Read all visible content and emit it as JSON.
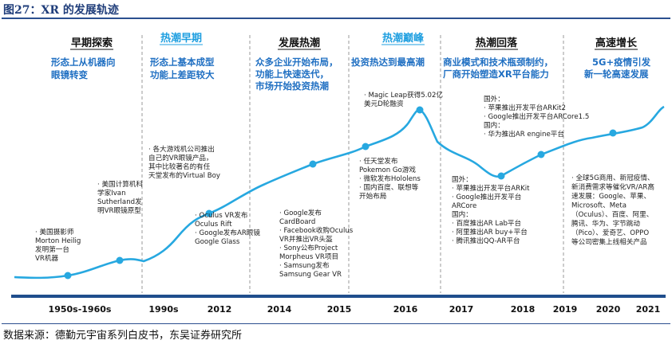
{
  "figure_title": "图27：XR 的发展轨迹",
  "source": "数据来源：德勤元宇宙系列白皮书，东吴证券研究所",
  "phases": [
    {
      "name": "早期探索",
      "color": "#111111",
      "desc": [
        "形态上从机器向",
        "眼镜转变"
      ]
    },
    {
      "name": "热潮早期",
      "color": "#1f9fe0",
      "desc": [
        "形态上基本成型",
        "功能上差距较大"
      ]
    },
    {
      "name": "发展热潮",
      "color": "#111111",
      "desc": [
        "众多企业开始布局，",
        "功能上快速迭代，",
        "市场开始投资热潮"
      ]
    },
    {
      "name": "热潮巅峰",
      "color": "#1f9fe0",
      "desc": [
        "投资热达到最高潮"
      ]
    },
    {
      "name": "热潮回落",
      "color": "#111111",
      "desc": [
        "商业模式和技术瓶颈制约，",
        "厂商开始塑造XR平台能力"
      ]
    },
    {
      "name": "高速增长",
      "color": "#111111",
      "desc": [
        "5G+疫情引发",
        "新一轮高速发展"
      ]
    }
  ],
  "timeline": [
    "1950s-1960s",
    "1990s",
    "2012",
    "2014",
    "2015",
    "2016",
    "2017",
    "2018",
    "2019",
    "2020",
    "2021"
  ],
  "events": [
    {
      "lines": [
        "· 美国摄影师",
        "Morton Heilig",
        "发明第一台",
        "VR机器"
      ]
    },
    {
      "lines": [
        "· 美国计算机科",
        "学家Ivan",
        "Sutherland发",
        "明VR眼镜原型"
      ]
    },
    {
      "lines": [
        "· 各大游戏机公司推出",
        "自己的VR眼镜产品，",
        "其中比较著名的有任",
        "天堂发布的Virtual Boy"
      ]
    },
    {
      "lines": [
        "· Oculus VR发布",
        "Oculus Rift",
        "· Google发布AR眼镜",
        "Google Glass"
      ]
    },
    {
      "lines": [
        "· Google发布",
        "CardBoard",
        "· Facebook收购Oculus",
        "VR并推出VR头盔",
        "· Sony公布Project",
        "Morpheus VR项目",
        "· Samsung发布",
        "Samsung Gear VR"
      ]
    },
    {
      "lines": [
        "· Magic Leap获得5.02亿",
        "美元D轮融资"
      ]
    },
    {
      "lines": [
        "· 任天堂发布",
        "Pokemon Go游戏",
        "· 微软发布Hololens",
        "· 国内百度、联想等",
        "开始布局"
      ]
    },
    {
      "lines": [
        "国外：",
        "· 苹果推出开发平台ARKit2",
        "· Google推出开发平台ARCore1.5",
        "国内：",
        "· 华为推出AR engine平台"
      ]
    },
    {
      "lines": [
        "国外：",
        "· 苹果推出开发平台ARKit",
        "· Google推出开发平台",
        "ARCore",
        "国内：",
        "· 百度推出AR Lab平台",
        "· 阿里推出AR buy+平台",
        "· 腾讯推出QQ-AR平台"
      ]
    },
    {
      "lines": [
        "· 全球5G商用、新冠疫情、",
        "新消费需求等催化VR/AR高",
        "速发展：Google、苹果、",
        "Microsoft、Meta",
        "（Oculus）、百度、阿里、",
        "腾讯、华为、字节跳动",
        "（Pico）、爱奇艺、OPPO",
        "等公司密集上线相关产品"
      ]
    }
  ],
  "colors": {
    "curve": "#27a8e0",
    "dot": "#27a8e0",
    "axis": "#1f4e8c",
    "divider": "#8a8a8a",
    "blue_text": "#1f6fc2"
  }
}
